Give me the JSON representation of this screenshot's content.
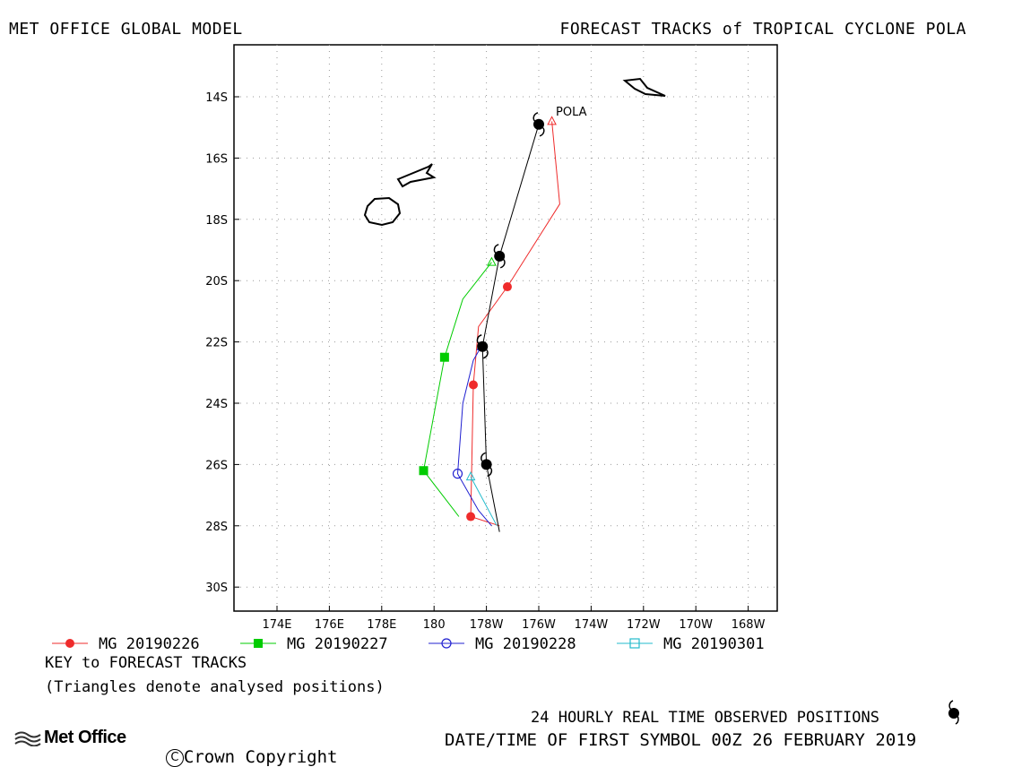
{
  "header": {
    "left_title": "MET OFFICE GLOBAL MODEL",
    "right_title": "FORECAST TRACKS of TROPICAL CYCLONE POLA"
  },
  "map": {
    "storm_label": "POLA",
    "lat_labels": [
      "14S",
      "16S",
      "18S",
      "20S",
      "22S",
      "24S",
      "26S",
      "28S",
      "30S"
    ],
    "lon_labels": [
      "174E",
      "176E",
      "178E",
      "180",
      "178W",
      "176W",
      "174W",
      "172W",
      "170W",
      "168W"
    ]
  },
  "legend": {
    "items": [
      {
        "label": "MG 20190226",
        "color": "#ef2b2b",
        "marker": "filled-circle"
      },
      {
        "label": "MG 20190227",
        "color": "#00cc00",
        "marker": "filled-square"
      },
      {
        "label": "MG 20190228",
        "color": "#2020d0",
        "marker": "open-circle"
      },
      {
        "label": "MG 20190301",
        "color": "#22bbcc",
        "marker": "open-square"
      }
    ],
    "key_title": "KEY to FORECAST TRACKS",
    "key_note": "(Triangles denote analysed positions)"
  },
  "footer": {
    "observed": "24 HOURLY REAL TIME OBSERVED POSITIONS",
    "datetime": "DATE/TIME OF FIRST SYMBOL 00Z 26 FEBRUARY 2019",
    "logo_text": "Met Office",
    "copyright": "Crown Copyright"
  },
  "tracks": {
    "observed": {
      "color": "#000000",
      "points": [
        [
          -176.0,
          -14.9
        ],
        [
          -177.5,
          -19.2
        ],
        [
          -178.15,
          -22.15
        ],
        [
          -178.0,
          -26.0
        ],
        [
          -177.5,
          -28.2
        ]
      ]
    },
    "series": [
      {
        "name": "MG 20190226",
        "color": "#ef2b2b",
        "analysed": [
          -175.5,
          -14.8
        ],
        "line": [
          [
            -175.5,
            -14.8
          ],
          [
            -175.2,
            -17.5
          ],
          [
            -177.2,
            -20.2
          ],
          [
            -178.3,
            -21.5
          ],
          [
            -178.5,
            -23.4
          ],
          [
            -178.6,
            -27.7
          ],
          [
            -177.5,
            -28.0
          ]
        ],
        "markers": [
          [
            -177.2,
            -20.2
          ],
          [
            -178.5,
            -23.4
          ],
          [
            -178.6,
            -27.7
          ]
        ]
      },
      {
        "name": "MG 20190227",
        "color": "#00cc00",
        "analysed": [
          -177.8,
          -19.4
        ],
        "line": [
          [
            -177.8,
            -19.4
          ],
          [
            -178.9,
            -20.6
          ],
          [
            -179.6,
            -22.5
          ],
          [
            -180.4,
            -26.2
          ],
          [
            -179.05,
            -27.7
          ]
        ],
        "markers": [
          [
            -179.6,
            -22.5
          ],
          [
            -180.4,
            -26.2
          ]
        ]
      },
      {
        "name": "MG 20190228",
        "color": "#2020d0",
        "analysed": [
          -178.2,
          -22.15
        ],
        "line": [
          [
            -178.2,
            -22.15
          ],
          [
            -178.5,
            -22.6
          ],
          [
            -178.9,
            -24.0
          ],
          [
            -179.1,
            -26.3
          ],
          [
            -178.3,
            -27.5
          ],
          [
            -177.8,
            -28.0
          ]
        ],
        "markers": [
          [
            -179.1,
            -26.3
          ]
        ]
      },
      {
        "name": "MG 20190301",
        "color": "#22bbcc",
        "analysed": [
          -178.6,
          -26.4
        ],
        "line": [
          [
            -178.6,
            -26.4
          ],
          [
            -177.6,
            -28.0
          ]
        ],
        "markers": []
      }
    ]
  }
}
